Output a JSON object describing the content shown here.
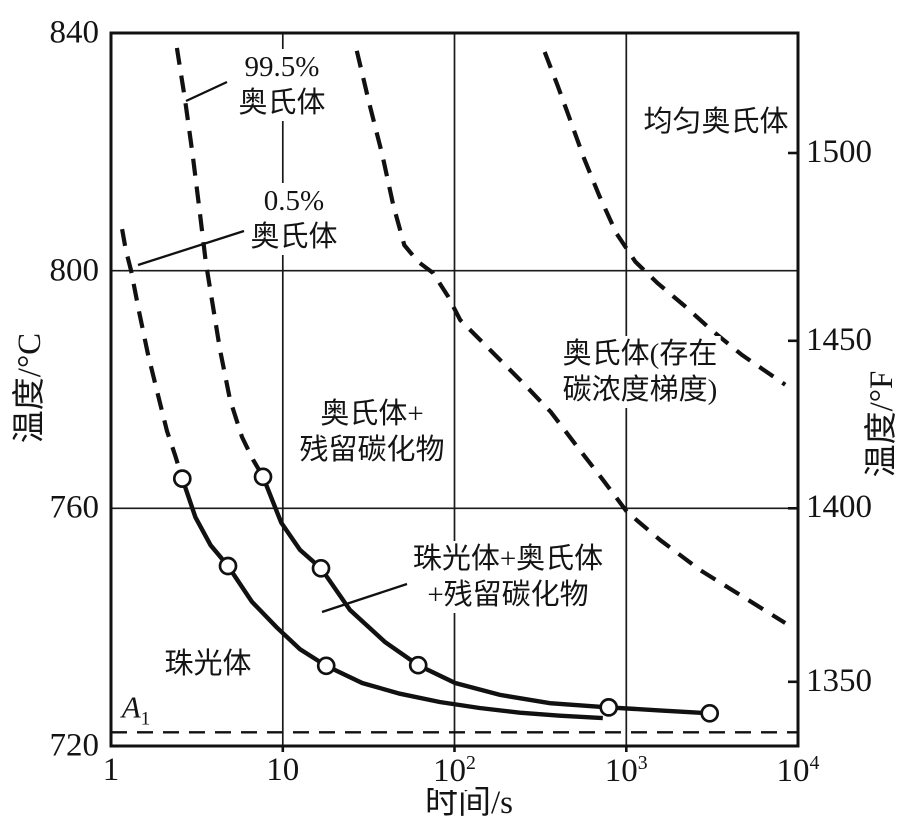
{
  "labels": {
    "pct995": "99.5%\n奥氏体",
    "pct05": "0.5%\n奥氏体",
    "homogeneous": "均匀奥氏体",
    "gradient": "奥氏体(存在\n碳浓度梯度)",
    "austenite_carbide": "奥氏体+\n残留碳化物",
    "pearlite_austenite_carbide": "珠光体+奥氏体\n+残留碳化物",
    "pearlite": "珠光体",
    "a1_base": "A",
    "a1_sub": "1",
    "xlabel": "时间/s",
    "ylabel_left": "温度/°C",
    "ylabel_right": "温度/°F"
  },
  "colors": {
    "ink": "#111111",
    "background": "#ffffff"
  },
  "chart_data": {
    "type": "line",
    "title": "",
    "xlabel": "时间/s",
    "ylabel": "温度/°C",
    "ylabel_right": "温度/°F",
    "x_axis": {
      "scale": "log",
      "min": 1,
      "max": 10000,
      "ticks": [
        {
          "value": 1,
          "base": "1",
          "exp": ""
        },
        {
          "value": 10,
          "base": "10",
          "exp": ""
        },
        {
          "value": 100,
          "base": "10",
          "exp": "2"
        },
        {
          "value": 1000,
          "base": "10",
          "exp": "3"
        },
        {
          "value": 10000,
          "base": "10",
          "exp": "4"
        }
      ],
      "gridlines": [
        10,
        100,
        1000
      ]
    },
    "y_axis_left": {
      "min": 720,
      "max": 840,
      "ticks": [
        840,
        800,
        760,
        720
      ],
      "gridlines": [
        800,
        760
      ]
    },
    "y_axis_right": {
      "ticks": [
        {
          "label": "1500",
          "c": 819.8
        },
        {
          "label": "1450",
          "c": 788.2
        },
        {
          "label": "1400",
          "c": 760.0
        },
        {
          "label": "1350",
          "c": 730.8
        }
      ]
    },
    "a1_line": {
      "label": "A1",
      "temperature_c": 722.3,
      "style": "dashed"
    },
    "series": [
      {
        "name": "austenite-start-0.5-dashed",
        "style": "dashed",
        "points": [
          [
            1.16,
            807
          ],
          [
            1.22,
            803.5
          ],
          [
            1.31,
            800
          ],
          [
            1.46,
            793
          ],
          [
            1.64,
            786
          ],
          [
            1.88,
            779
          ],
          [
            2.12,
            773
          ],
          [
            2.36,
            769
          ],
          [
            2.6,
            765
          ]
        ]
      },
      {
        "name": "austenite-start-0.5-solid",
        "style": "solid",
        "points": [
          [
            2.6,
            765
          ],
          [
            3.1,
            758.5
          ],
          [
            3.8,
            753.8
          ],
          [
            4.8,
            750.3
          ],
          [
            6.6,
            744.3
          ],
          [
            9.2,
            740
          ],
          [
            12.6,
            736.3
          ],
          [
            17.9,
            733.5
          ],
          [
            29,
            730.6
          ],
          [
            48,
            728.8
          ],
          [
            82,
            727.4
          ],
          [
            140,
            726.4
          ],
          [
            240,
            725.6
          ],
          [
            410,
            725.1
          ],
          [
            730,
            724.7
          ]
        ]
      },
      {
        "name": "austenite-finish-99.5-dashed",
        "style": "dashed",
        "points": [
          [
            2.42,
            837.5
          ],
          [
            2.7,
            828.7
          ],
          [
            3.0,
            819.2
          ],
          [
            3.3,
            809.4
          ],
          [
            3.57,
            801.3
          ],
          [
            3.87,
            795.1
          ],
          [
            4.31,
            786.7
          ],
          [
            4.93,
            778.3
          ],
          [
            5.79,
            772
          ],
          [
            6.71,
            768.2
          ],
          [
            7.67,
            765.3
          ]
        ]
      },
      {
        "name": "austenite-finish-99.5-solid",
        "style": "solid",
        "points": [
          [
            7.67,
            765.3
          ],
          [
            9.8,
            757.6
          ],
          [
            12.6,
            753
          ],
          [
            16.7,
            749.9
          ],
          [
            24.6,
            742.9
          ],
          [
            39.4,
            737.5
          ],
          [
            61.5,
            733.6
          ],
          [
            101,
            730.6
          ],
          [
            184,
            728.6
          ],
          [
            360,
            727.2
          ],
          [
            790,
            726.5
          ],
          [
            1560,
            726
          ],
          [
            3060,
            725.5
          ]
        ]
      },
      {
        "name": "carbide-dissolution-dashed",
        "style": "dashed",
        "points": [
          [
            27,
            837
          ],
          [
            32,
            828
          ],
          [
            38,
            819.5
          ],
          [
            44,
            811
          ],
          [
            51,
            804.3
          ],
          [
            61.5,
            801.5
          ],
          [
            75,
            799.6
          ],
          [
            92,
            795.6
          ],
          [
            108,
            791.7
          ],
          [
            166,
            786.3
          ],
          [
            247,
            781.3
          ],
          [
            364,
            776.2
          ],
          [
            524,
            770.2
          ],
          [
            731,
            764.8
          ],
          [
            1010,
            759.4
          ],
          [
            1570,
            754.7
          ],
          [
            2690,
            749.6
          ],
          [
            4930,
            744.9
          ],
          [
            8420,
            740.7
          ]
        ]
      },
      {
        "name": "homogenization-dashed",
        "style": "dashed",
        "points": [
          [
            335,
            836.8
          ],
          [
            398,
            831.2
          ],
          [
            471,
            825.4
          ],
          [
            566,
            819
          ],
          [
            697,
            812.6
          ],
          [
            875,
            806.3
          ],
          [
            1130,
            801.5
          ],
          [
            1520,
            797.9
          ],
          [
            2160,
            794.2
          ],
          [
            3140,
            790
          ],
          [
            4720,
            785.8
          ],
          [
            8420,
            780.8
          ]
        ]
      }
    ],
    "markers": [
      [
        2.6,
        765
      ],
      [
        4.8,
        750.3
      ],
      [
        17.9,
        733.5
      ],
      [
        7.67,
        765.3
      ],
      [
        16.7,
        749.9
      ],
      [
        61.5,
        733.6
      ],
      [
        790,
        726.5
      ],
      [
        3060,
        725.5
      ]
    ],
    "legend": "none",
    "grid": true
  }
}
